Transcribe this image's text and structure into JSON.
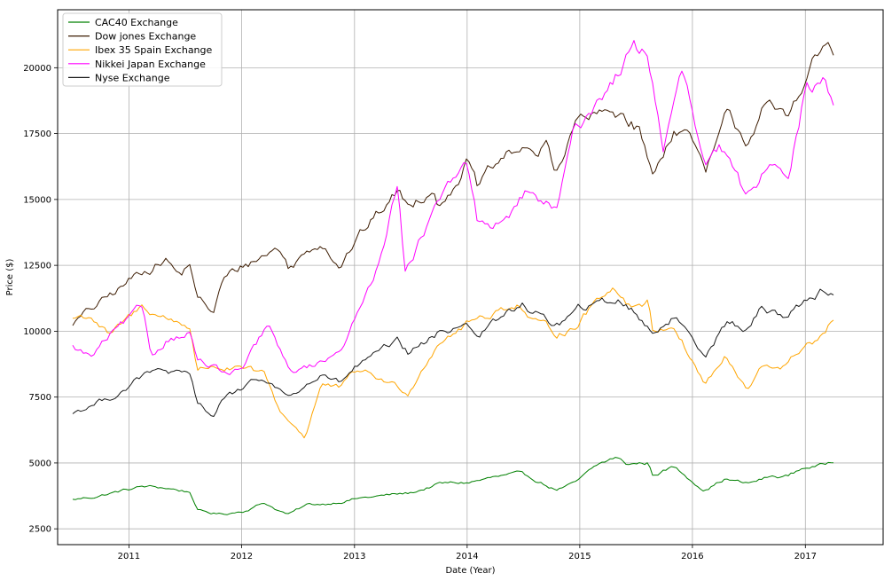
{
  "chart_data": {
    "type": "line",
    "title": "",
    "xlabel": "Date (Year)",
    "ylabel": "Price ($)",
    "xlim": [
      "2010-05-15",
      "2017-09-10"
    ],
    "ylim": [
      1900,
      22200
    ],
    "grid": true,
    "legend_position": "top-left",
    "x_ticks": [
      "2011",
      "2012",
      "2013",
      "2014",
      "2015",
      "2016",
      "2017"
    ],
    "y_ticks": [
      2500,
      5000,
      7500,
      10000,
      12500,
      15000,
      17500,
      20000
    ],
    "series": [
      {
        "name": "CAC40 Exchange",
        "color": "#008000",
        "x": [
          "2010-07-01",
          "2010-09-01",
          "2010-11-01",
          "2011-02-15",
          "2011-05-01",
          "2011-07-20",
          "2011-08-10",
          "2011-09-20",
          "2011-11-01",
          "2012-01-10",
          "2012-03-15",
          "2012-05-01",
          "2012-06-01",
          "2012-08-01",
          "2012-10-01",
          "2013-01-01",
          "2013-04-01",
          "2013-07-01",
          "2013-10-01",
          "2014-01-01",
          "2014-04-01",
          "2014-06-10",
          "2014-08-10",
          "2014-10-15",
          "2014-12-15",
          "2015-03-01",
          "2015-04-27",
          "2015-06-01",
          "2015-08-10",
          "2015-08-25",
          "2015-11-01",
          "2016-02-10",
          "2016-04-15",
          "2016-06-27",
          "2016-09-01",
          "2016-11-04",
          "2017-01-01",
          "2017-03-01",
          "2017-04-05"
        ],
        "values": [
          3600,
          3700,
          3850,
          4100,
          4050,
          3900,
          3200,
          3100,
          3050,
          3200,
          3500,
          3200,
          3050,
          3400,
          3450,
          3650,
          3750,
          3850,
          4200,
          4250,
          4450,
          4550,
          4350,
          4000,
          4200,
          4900,
          5200,
          4950,
          5000,
          4550,
          4850,
          4000,
          4400,
          4200,
          4450,
          4500,
          4850,
          4900,
          5100
        ]
      },
      {
        "name": "Dow jones Exchange",
        "color": "#3d1c02",
        "x": [
          "2010-07-01",
          "2010-09-01",
          "2010-11-01",
          "2011-02-15",
          "2011-04-29",
          "2011-06-15",
          "2011-07-20",
          "2011-08-10",
          "2011-10-03",
          "2011-11-01",
          "2012-01-10",
          "2012-05-01",
          "2012-06-01",
          "2012-09-15",
          "2012-11-15",
          "2013-01-01",
          "2013-05-20",
          "2013-06-24",
          "2013-09-15",
          "2013-10-08",
          "2013-12-31",
          "2014-02-03",
          "2014-05-01",
          "2014-07-15",
          "2014-08-07",
          "2014-09-15",
          "2014-10-15",
          "2014-12-26",
          "2015-03-01",
          "2015-05-19",
          "2015-07-15",
          "2015-08-25",
          "2015-11-01",
          "2016-01-01",
          "2016-02-11",
          "2016-04-20",
          "2016-06-27",
          "2016-08-15",
          "2016-11-04",
          "2017-01-01",
          "2017-03-01",
          "2017-04-05"
        ],
        "values": [
          10300,
          10800,
          11300,
          12300,
          12800,
          12100,
          12600,
          11200,
          10700,
          11900,
          12500,
          13200,
          12400,
          13500,
          12600,
          13400,
          15300,
          14700,
          15600,
          14800,
          16500,
          15400,
          16500,
          17100,
          16400,
          17100,
          16100,
          18000,
          18100,
          18300,
          17700,
          15800,
          17800,
          17400,
          15800,
          18000,
          17200,
          18600,
          17900,
          19800,
          20800,
          20600
        ]
      },
      {
        "name": "Ibex 35 Spain Exchange",
        "color": "#ffa500",
        "x": [
          "2010-07-01",
          "2010-09-01",
          "2010-11-01",
          "2011-02-15",
          "2011-05-01",
          "2011-07-20",
          "2011-08-10",
          "2011-10-01",
          "2012-01-10",
          "2012-03-15",
          "2012-05-01",
          "2012-07-24",
          "2012-09-15",
          "2012-11-15",
          "2013-01-15",
          "2013-03-01",
          "2013-06-24",
          "2013-10-01",
          "2014-01-01",
          "2014-06-10",
          "2014-08-07",
          "2014-10-15",
          "2014-12-15",
          "2015-04-14",
          "2015-06-15",
          "2015-08-10",
          "2015-08-24",
          "2015-11-01",
          "2016-02-10",
          "2016-04-15",
          "2016-06-27",
          "2016-08-15",
          "2016-11-04",
          "2017-01-01",
          "2017-03-01",
          "2017-04-05"
        ],
        "values": [
          10500,
          10600,
          9800,
          10900,
          10500,
          10200,
          8500,
          8700,
          8500,
          8300,
          7000,
          6000,
          8000,
          7800,
          8500,
          8300,
          7700,
          9700,
          10300,
          11100,
          10300,
          9900,
          10200,
          11800,
          11000,
          11200,
          10000,
          10300,
          8000,
          9000,
          7700,
          8600,
          8700,
          9500,
          9800,
          10500
        ]
      },
      {
        "name": "Nikkei Japan Exchange",
        "color": "#ff00ff",
        "x": [
          "2010-07-01",
          "2010-09-01",
          "2010-11-01",
          "2011-02-15",
          "2011-03-15",
          "2011-05-01",
          "2011-07-20",
          "2011-08-10",
          "2011-11-25",
          "2012-01-10",
          "2012-03-27",
          "2012-06-04",
          "2012-09-15",
          "2012-11-15",
          "2013-01-15",
          "2013-03-01",
          "2013-05-22",
          "2013-06-13",
          "2013-09-15",
          "2013-12-30",
          "2014-02-05",
          "2014-05-01",
          "2014-07-15",
          "2014-10-17",
          "2014-12-15",
          "2015-03-01",
          "2015-06-24",
          "2015-08-10",
          "2015-09-29",
          "2015-12-01",
          "2016-02-12",
          "2016-04-01",
          "2016-06-24",
          "2016-09-15",
          "2016-11-09",
          "2017-01-01",
          "2017-03-01",
          "2017-04-05"
        ],
        "values": [
          9400,
          9000,
          9800,
          10800,
          9000,
          9700,
          10000,
          8900,
          8300,
          8600,
          10200,
          8400,
          8800,
          9400,
          10700,
          12000,
          15600,
          12500,
          14500,
          16300,
          14000,
          14100,
          15300,
          14500,
          17500,
          18800,
          20700,
          20500,
          17000,
          19800,
          16000,
          16800,
          15000,
          16600,
          16300,
          19200,
          19400,
          18600
        ]
      },
      {
        "name": "Nyse Exchange",
        "color": "#1a1a1a",
        "x": [
          "2010-07-01",
          "2010-09-01",
          "2010-11-01",
          "2011-02-15",
          "2011-04-29",
          "2011-07-20",
          "2011-08-10",
          "2011-10-03",
          "2011-11-01",
          "2012-01-10",
          "2012-03-15",
          "2012-06-01",
          "2012-09-15",
          "2012-11-15",
          "2013-01-01",
          "2013-05-20",
          "2013-06-24",
          "2013-10-01",
          "2013-12-31",
          "2014-02-03",
          "2014-06-30",
          "2014-10-15",
          "2014-12-26",
          "2015-05-19",
          "2015-08-25",
          "2015-11-01",
          "2016-02-11",
          "2016-04-20",
          "2016-06-27",
          "2016-08-15",
          "2016-11-04",
          "2017-01-01",
          "2017-03-01",
          "2017-04-05"
        ],
        "values": [
          6900,
          7200,
          7500,
          8300,
          8500,
          8200,
          7200,
          6800,
          7500,
          7800,
          8200,
          7500,
          8300,
          8000,
          8600,
          9500,
          9100,
          9900,
          10400,
          9900,
          11000,
          10200,
          10800,
          11200,
          10000,
          10600,
          9200,
          10400,
          10000,
          10900,
          10600,
          11200,
          11600,
          11500
        ]
      }
    ]
  }
}
